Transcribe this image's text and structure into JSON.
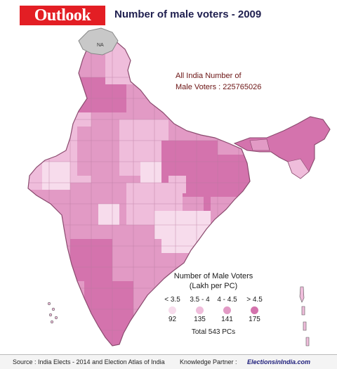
{
  "header": {
    "logo": "Outlook",
    "title": "Number of male voters - 2009"
  },
  "map": {
    "na_label": "NA",
    "total_line1": "All India Number of",
    "total_line2": "Male Voters : 225765026",
    "colors": {
      "na_region": "#c8c8c8",
      "border": "#8a4a6e",
      "background": "#ffffff"
    }
  },
  "legend": {
    "title_line1": "Number of Male Voters",
    "title_line2": "(Lakh per PC)",
    "categories": [
      {
        "label": "< 3.5",
        "count": "92",
        "color": "#f7dcec"
      },
      {
        "label": "3.5 - 4",
        "count": "135",
        "color": "#efbddb"
      },
      {
        "label": "4 - 4.5",
        "count": "141",
        "color": "#e29ac5"
      },
      {
        "label": "> 4.5",
        "count": "175",
        "color": "#d473ad"
      }
    ],
    "total": "Total 543 PCs"
  },
  "footer": {
    "source": "Source : India Elects - 2014 and Election Atlas of India",
    "partner_label": "Knowledge Partner :",
    "partner_name": "ElectionsinIndia.com"
  }
}
